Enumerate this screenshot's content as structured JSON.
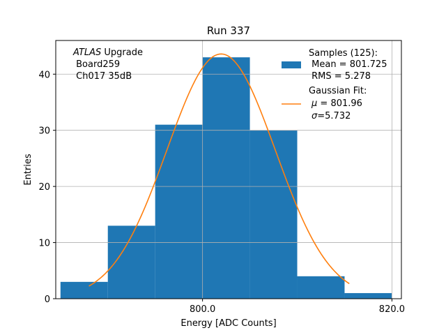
{
  "chart_data": {
    "type": "bar",
    "title": "Run 337",
    "xlabel": "Energy [ADC Counts]",
    "ylabel": "Entries",
    "xlim": [
      784.5,
      821.0
    ],
    "ylim": [
      0,
      46
    ],
    "x_ticks": [
      800.0,
      820.0
    ],
    "x_tick_labels": [
      "800.0",
      "820.0"
    ],
    "y_ticks": [
      0,
      10,
      20,
      30,
      40
    ],
    "y_tick_labels": [
      "0",
      "10",
      "20",
      "30",
      "40"
    ],
    "grid": true,
    "legend_position": "top-right",
    "histogram": {
      "name": "Samples (125):\n Mean = 801.725\n RMS = 5.278",
      "color": "#1f77b4",
      "bin_edges": [
        785,
        790,
        795,
        800,
        805,
        810,
        815,
        820
      ],
      "counts": [
        3,
        13,
        31,
        43,
        30,
        4,
        1
      ]
    },
    "fit": {
      "name": "Gaussian Fit:\n $\\mu$ = 801.96\n $\\sigma$=5.732",
      "color": "#ff7f0e",
      "mu": 801.96,
      "sigma": 5.732,
      "amplitude": 43.6,
      "x_range": [
        788.0,
        815.5
      ]
    },
    "annotation": {
      "italic": "ATLAS",
      "rest": " Upgrade",
      "line2": " Board259",
      "line3": " Ch017 35dB"
    },
    "legend": {
      "samples_line1": "Samples (125):",
      "samples_line2": " Mean = 801.725",
      "samples_line3": " RMS = 5.278",
      "fit_line1": "Gaussian Fit:",
      "fit_mu_symbol": "μ",
      "fit_mu_rest": " = 801.96",
      "fit_sigma_symbol": "σ",
      "fit_sigma_rest": "=5.732"
    }
  }
}
